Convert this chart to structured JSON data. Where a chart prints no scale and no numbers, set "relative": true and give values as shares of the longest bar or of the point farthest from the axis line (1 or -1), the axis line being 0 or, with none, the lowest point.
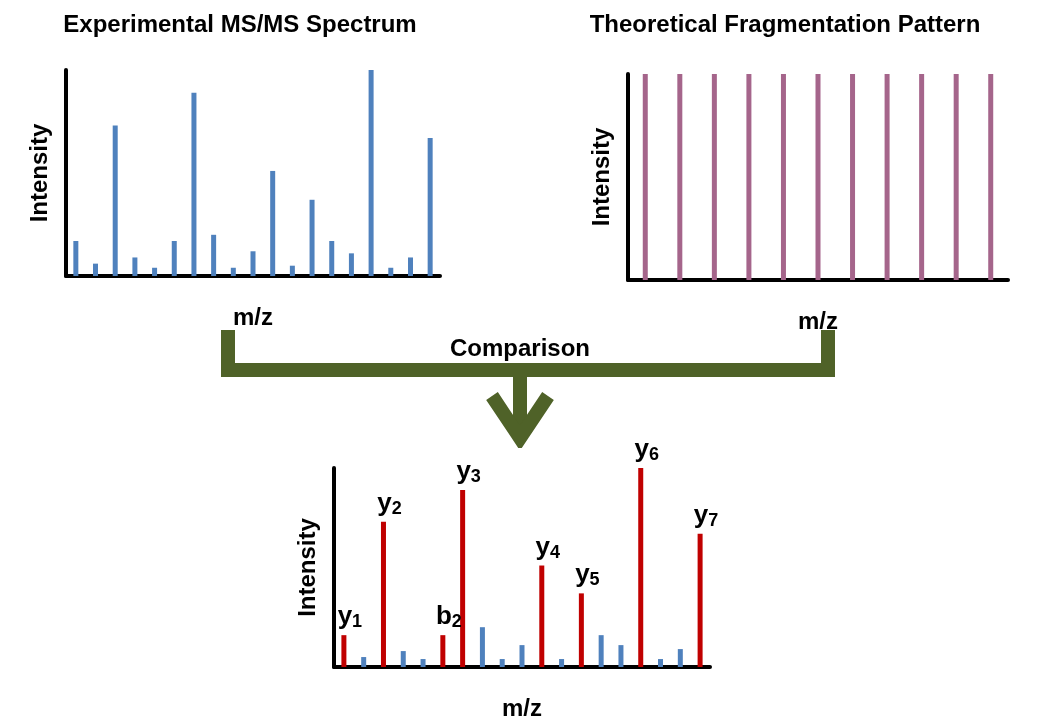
{
  "chart_data": [
    {
      "type": "bar",
      "title": "Experimental MS/MS Spectrum",
      "xlabel": "m/z",
      "ylabel": "Intensity",
      "relative": true,
      "color": "#4f81bd",
      "categories": [
        null,
        null,
        null,
        null,
        null,
        null,
        null,
        null,
        null,
        null,
        null,
        null,
        null,
        null,
        null,
        null,
        null,
        null,
        null
      ],
      "values": [
        0.17,
        0.06,
        0.73,
        0.09,
        0.04,
        0.17,
        0.89,
        0.2,
        0.04,
        0.12,
        0.51,
        0.05,
        0.37,
        0.17,
        0.11,
        1.0,
        0.04,
        0.09,
        0.67
      ]
    },
    {
      "type": "bar",
      "title": "Theoretical Fragmentation Pattern",
      "xlabel": "m/z",
      "ylabel": "Intensity",
      "relative": true,
      "color": "#a5658b",
      "categories": [
        null,
        null,
        null,
        null,
        null,
        null,
        null,
        null,
        null,
        null,
        null
      ],
      "values": [
        1,
        1,
        1,
        1,
        1,
        1,
        1,
        1,
        1,
        1,
        1
      ]
    },
    {
      "type": "other",
      "annotations": [
        "Comparison"
      ]
    },
    {
      "type": "bar",
      "xlabel": "m/z",
      "ylabel": "Intensity",
      "relative": true,
      "categories": [
        null,
        null,
        null,
        null,
        null,
        null,
        null,
        null,
        null,
        null,
        null,
        null,
        null,
        null,
        null,
        null,
        null,
        null,
        null
      ],
      "values": [
        0.16,
        0.05,
        0.73,
        0.08,
        0.04,
        0.16,
        0.89,
        0.2,
        0.04,
        0.11,
        0.51,
        0.04,
        0.37,
        0.16,
        0.11,
        1.0,
        0.04,
        0.09,
        0.67
      ],
      "colors": [
        "#c00000",
        "#4f81bd",
        "#c00000",
        "#4f81bd",
        "#4f81bd",
        "#c00000",
        "#c00000",
        "#4f81bd",
        "#4f81bd",
        "#4f81bd",
        "#c00000",
        "#4f81bd",
        "#c00000",
        "#4f81bd",
        "#4f81bd",
        "#c00000",
        "#4f81bd",
        "#4f81bd",
        "#c00000"
      ],
      "annotations": [
        "y$_{1}$",
        "y$_{2}$",
        "b$_{2}$",
        "y$_{3}$",
        "y$_{4}$",
        "y$_{5}$",
        "y$_{6}$",
        "y$_{7}$"
      ]
    }
  ]
}
